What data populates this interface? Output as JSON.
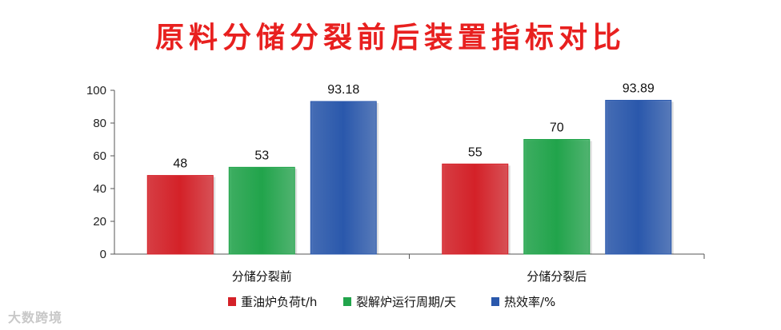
{
  "chart_data": {
    "type": "bar",
    "title": "原料分储分裂前后装置指标对比",
    "categories": [
      "分储分裂前",
      "分储分裂后"
    ],
    "series": [
      {
        "name": "重油炉负荷t/h",
        "values": [
          48,
          55
        ],
        "labels": [
          "48",
          "55"
        ],
        "color": "#d42128"
      },
      {
        "name": "裂解炉运行周期/天",
        "values": [
          53,
          70
        ],
        "labels": [
          "53",
          "70"
        ],
        "color": "#21a44b"
      },
      {
        "name": "热效率/%",
        "values": [
          93.18,
          93.89
        ],
        "labels": [
          "93.18",
          "93.89"
        ],
        "color": "#2a58ac"
      }
    ],
    "yticks": [
      "0",
      "20",
      "40",
      "60",
      "80",
      "100"
    ],
    "ylim": [
      0,
      100
    ],
    "xlabel": "",
    "ylabel": "",
    "legend": "bottom",
    "grid": false
  },
  "watermark": "大数跨境"
}
